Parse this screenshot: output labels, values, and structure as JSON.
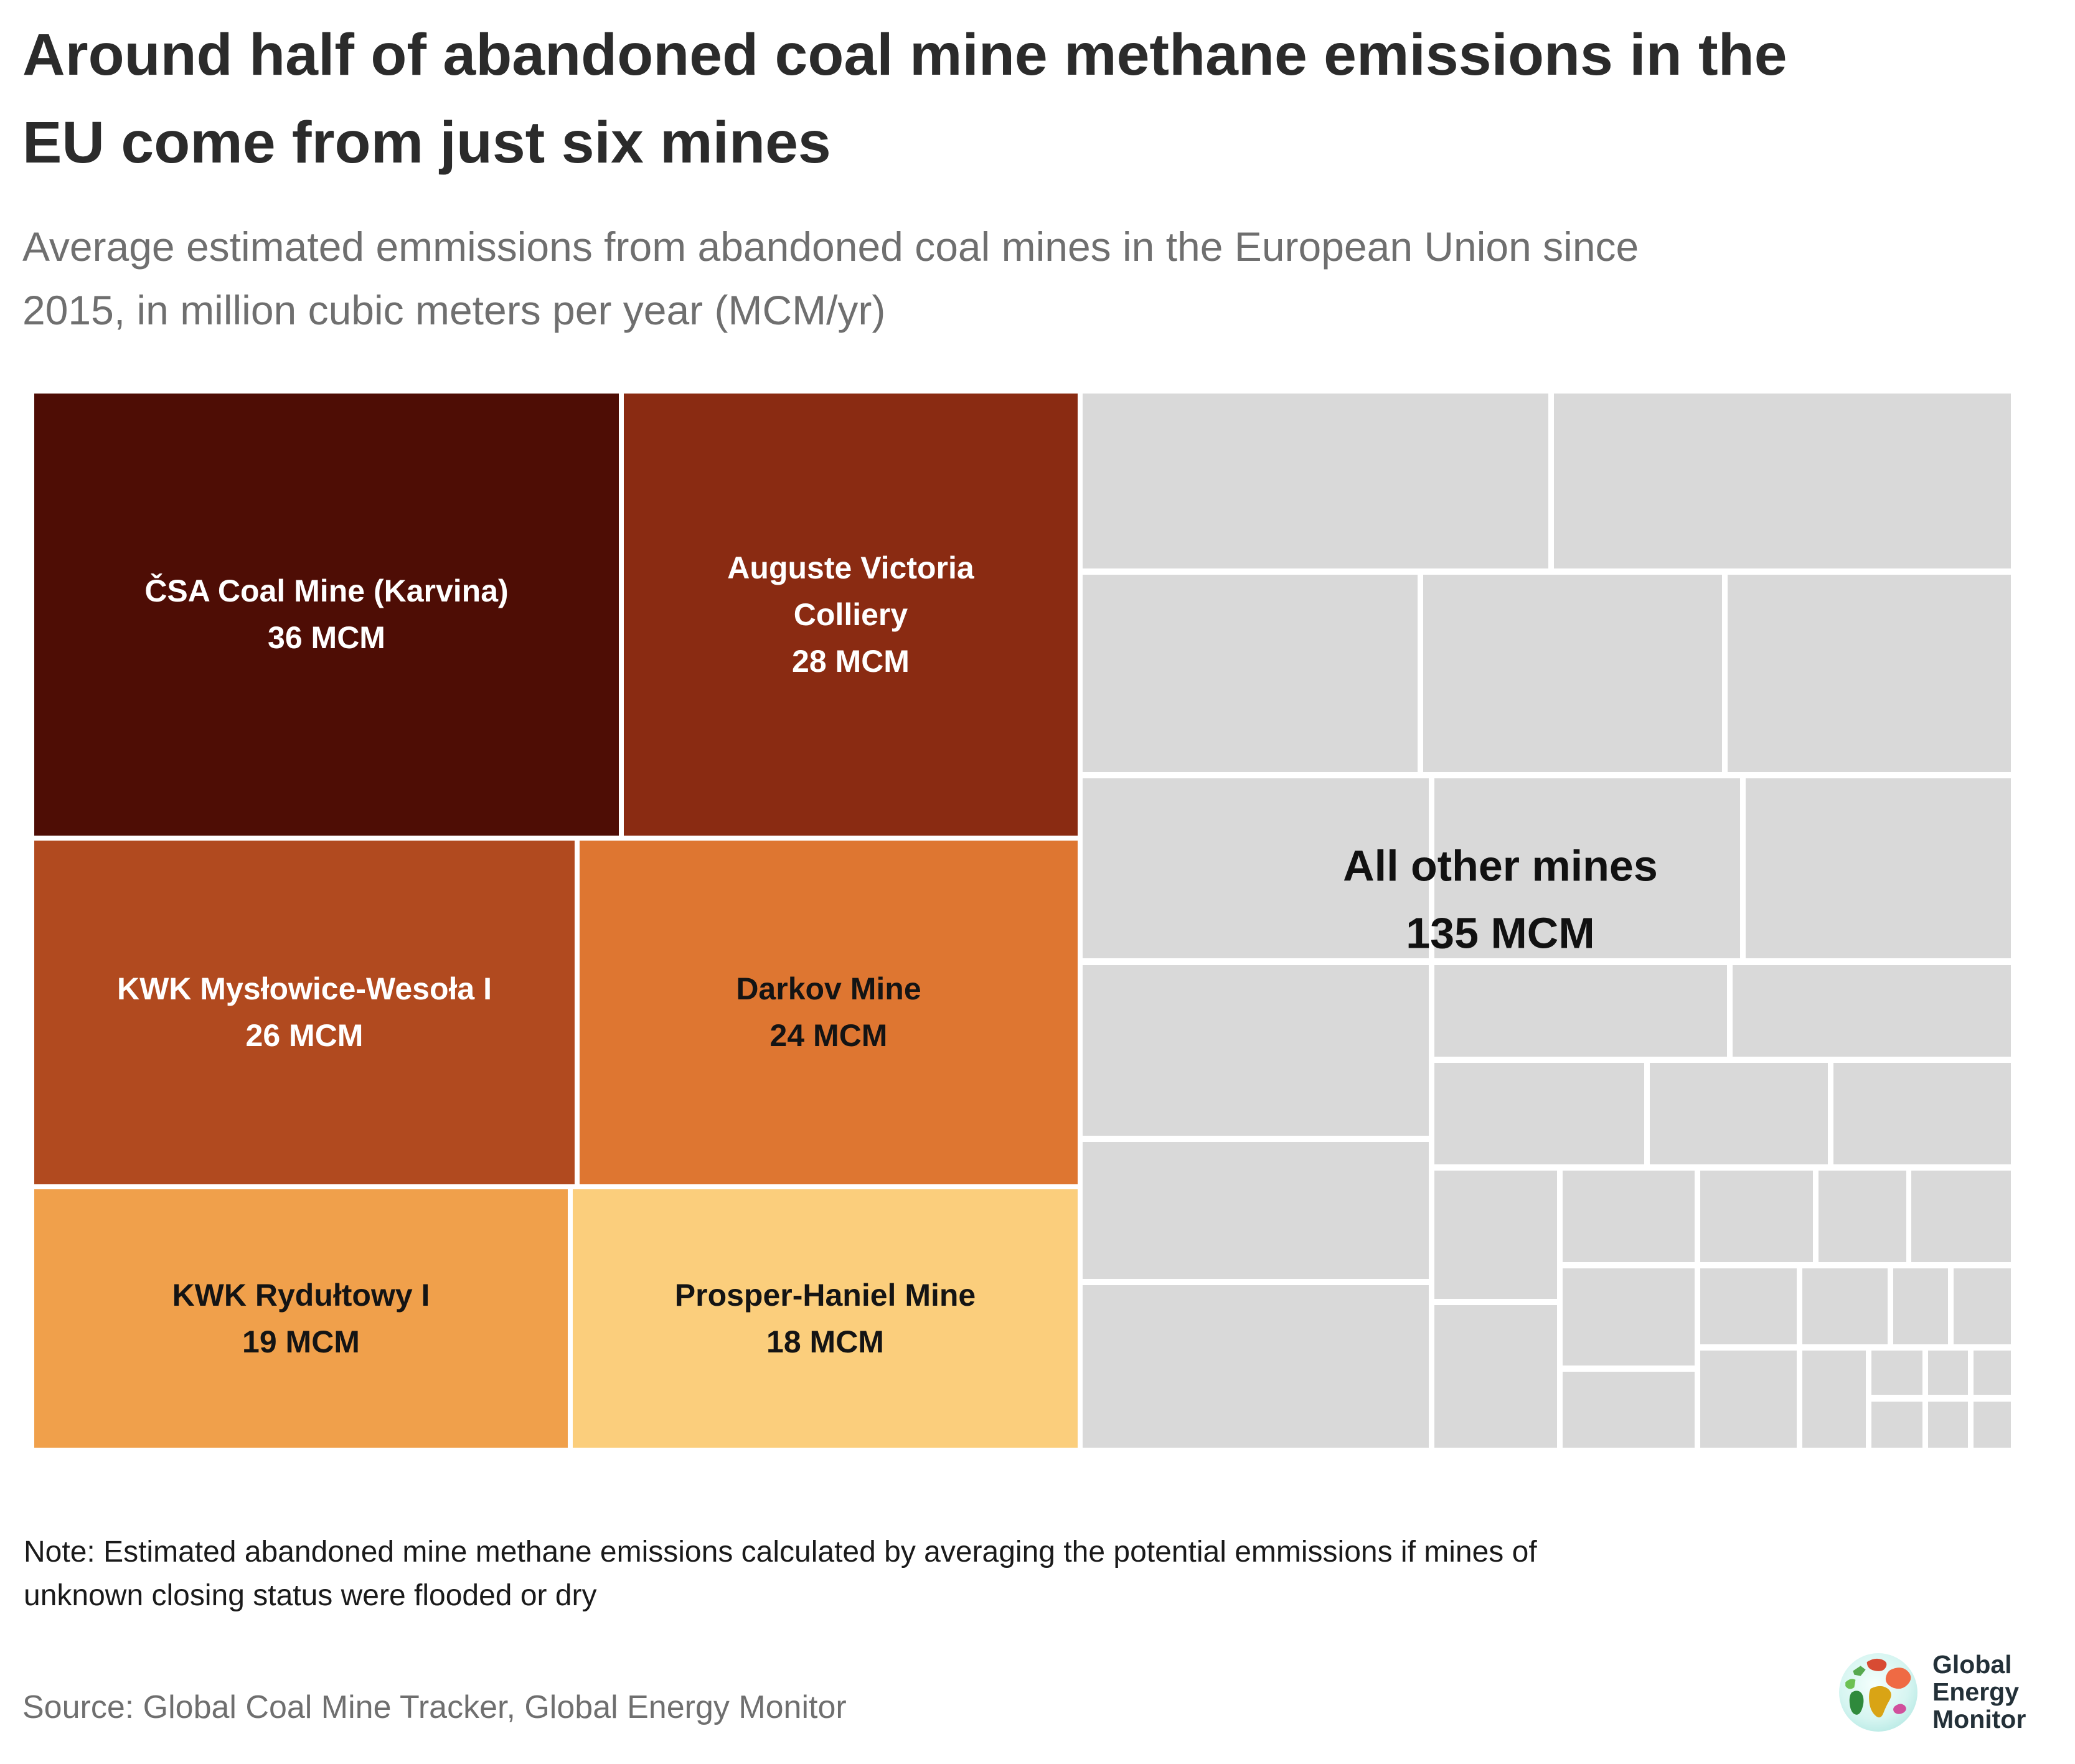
{
  "title": {
    "line1": "Around half of abandoned coal mine methane emissions in the",
    "line2": "EU come from just six mines"
  },
  "subtitle": {
    "line1": "Average estimated emmissions from abandoned coal mines in the European Union since",
    "line2": "2015, in million cubic meters per year (MCM/yr)"
  },
  "note": {
    "line1": "Note: Estimated abandoned mine methane emissions calculated by averaging the potential emmissions if mines of",
    "line2": "unknown closing status were flooded or dry"
  },
  "source": "Source: Global Coal Mine Tracker, Global Energy Monitor",
  "logo": {
    "line1": "Global",
    "line2": "Energy",
    "line3": "Monitor"
  },
  "chart_data": {
    "type": "treemap",
    "title": "Around half of abandoned coal mine methane emissions in the EU come from just six mines",
    "subtitle": "Average estimated emmissions from abandoned coal mines in the European Union since 2015, in million cubic meters per year (MCM/yr)",
    "units": "MCM/yr",
    "items": [
      {
        "name": "ČSA Coal Mine (Karvina)",
        "value": 36,
        "value_label": "36 MCM",
        "color": "#4e0d05",
        "text_color": "#ffffff"
      },
      {
        "name": "Auguste Victoria Colliery",
        "value": 28,
        "value_label": "28 MCM",
        "color": "#8a2b12",
        "text_color": "#ffffff"
      },
      {
        "name": "KWK Mysłowice-Wesoła I",
        "value": 26,
        "value_label": "26 MCM",
        "color": "#b14a1f",
        "text_color": "#ffffff"
      },
      {
        "name": "Darkov Mine",
        "value": 24,
        "value_label": "24 MCM",
        "color": "#de7631",
        "text_color": "#141414"
      },
      {
        "name": "KWK Rydułtowy I",
        "value": 19,
        "value_label": "19 MCM",
        "color": "#f0a04b",
        "text_color": "#141414"
      },
      {
        "name": "Prosper-Haniel Mine",
        "value": 18,
        "value_label": "18 MCM",
        "color": "#fbce7c",
        "text_color": "#141414"
      },
      {
        "name": "All other mines",
        "value": 135,
        "value_label": "135 MCM",
        "color": "#d9d9d9",
        "text_color": "#111111"
      }
    ]
  }
}
